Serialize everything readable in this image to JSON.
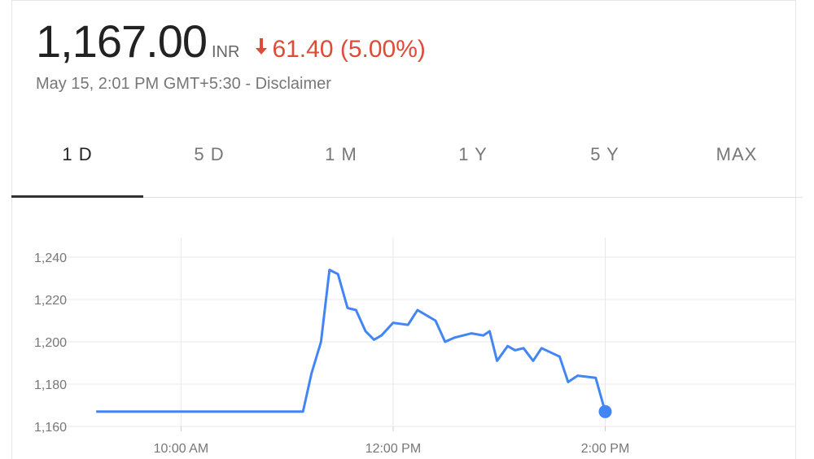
{
  "header": {
    "price": "1,167.00",
    "currency": "INR",
    "change": "61.40 (5.00%)",
    "timestamp": "May 15, 2:01 PM GMT+5:30 - ",
    "disclaimer": "Disclaimer"
  },
  "tabs": [
    "1 D",
    "5 D",
    "1 M",
    "1 Y",
    "5 Y",
    "MAX"
  ],
  "chart_data": {
    "type": "line",
    "x": [
      9.2,
      11.15,
      11.23,
      11.32,
      11.4,
      11.48,
      11.57,
      11.65,
      11.74,
      11.82,
      11.89,
      12.0,
      12.14,
      12.23,
      12.4,
      12.49,
      12.58,
      12.74,
      12.85,
      12.91,
      12.98,
      13.08,
      13.15,
      13.23,
      13.32,
      13.4,
      13.57,
      13.65,
      13.74,
      13.91,
      14.0
    ],
    "series": [
      {
        "color": "#4285f4",
        "values": [
          1167,
          1167,
          1185,
          1200,
          1234,
          1232,
          1216,
          1215,
          1205,
          1201,
          1203,
          1209,
          1208,
          1215,
          1210,
          1200,
          1202,
          1204,
          1203,
          1205,
          1191,
          1198,
          1196,
          1197,
          1191,
          1197,
          1193,
          1181,
          1184,
          1183,
          1167
        ]
      }
    ],
    "xlim": [
      8.6,
      15.8
    ],
    "xticks": [
      {
        "value": 10,
        "label": "10:00 AM"
      },
      {
        "value": 12,
        "label": "12:00 PM"
      },
      {
        "value": 14,
        "label": "2:00 PM"
      }
    ],
    "ylim": [
      1160,
      1240
    ],
    "yticks": [
      {
        "value": 1160,
        "label": "1,160"
      },
      {
        "value": 1180,
        "label": "1,180"
      },
      {
        "value": 1200,
        "label": "1,200"
      },
      {
        "value": 1220,
        "label": "1,220"
      },
      {
        "value": 1240,
        "label": "1,240"
      }
    ],
    "grid": true
  }
}
